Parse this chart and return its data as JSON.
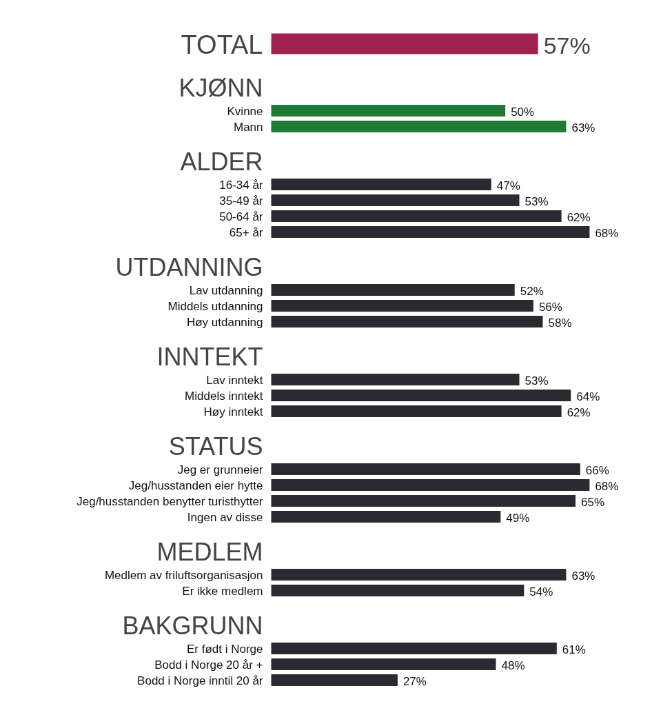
{
  "chart_data": [
    {
      "type": "bar",
      "orientation": "horizontal",
      "categories": [
        "TOTAL"
      ],
      "values": [
        57
      ],
      "value_labels": [
        "57%"
      ],
      "colors": [
        "#a0214f"
      ]
    },
    {
      "type": "bar",
      "orientation": "horizontal",
      "title": "KJØNN",
      "categories": [
        "Kvinne",
        "Mann"
      ],
      "values": [
        50,
        63
      ],
      "value_labels": [
        "50%",
        "63%"
      ],
      "colors": [
        "#1e7b34",
        "#1e7b34"
      ]
    },
    {
      "type": "bar",
      "orientation": "horizontal",
      "title": "ALDER",
      "categories": [
        "16-34 år",
        "35-49 år",
        "50-64 år",
        "65+ år"
      ],
      "values": [
        47,
        53,
        62,
        68
      ],
      "value_labels": [
        "47%",
        "53%",
        "62%",
        "68%"
      ],
      "colors": [
        "#2c2a30",
        "#2c2a30",
        "#2c2a30",
        "#2c2a30"
      ]
    },
    {
      "type": "bar",
      "orientation": "horizontal",
      "title": "UTDANNING",
      "categories": [
        "Lav utdanning",
        "Middels utdanning",
        "Høy utdanning"
      ],
      "values": [
        52,
        56,
        58
      ],
      "value_labels": [
        "52%",
        "56%",
        "58%"
      ],
      "colors": [
        "#2c2a30",
        "#2c2a30",
        "#2c2a30"
      ]
    },
    {
      "type": "bar",
      "orientation": "horizontal",
      "title": "INNTEKT",
      "categories": [
        "Lav inntekt",
        "Middels inntekt",
        "Høy inntekt"
      ],
      "values": [
        53,
        64,
        62
      ],
      "value_labels": [
        "53%",
        "64%",
        "62%"
      ],
      "colors": [
        "#2c2a30",
        "#2c2a30",
        "#2c2a30"
      ]
    },
    {
      "type": "bar",
      "orientation": "horizontal",
      "title": "STATUS",
      "categories": [
        "Jeg er grunneier",
        "Jeg/husstanden eier hytte",
        "Jeg/husstanden benytter turisthytter",
        "Ingen av disse"
      ],
      "values": [
        66,
        68,
        65,
        49
      ],
      "value_labels": [
        "66%",
        "68%",
        "65%",
        "49%"
      ],
      "colors": [
        "#2c2a30",
        "#2c2a30",
        "#2c2a30",
        "#2c2a30"
      ]
    },
    {
      "type": "bar",
      "orientation": "horizontal",
      "title": "MEDLEM",
      "categories": [
        "Medlem av friluftsorganisasjon",
        "Er ikke medlem"
      ],
      "values": [
        63,
        54
      ],
      "value_labels": [
        "63%",
        "54%"
      ],
      "colors": [
        "#2c2a30",
        "#2c2a30"
      ]
    },
    {
      "type": "bar",
      "orientation": "horizontal",
      "title": "BAKGRUNN",
      "categories": [
        "Er født i Norge",
        "Bodd i Norge 20 år +",
        "Bodd i Norge inntil 20 år"
      ],
      "values": [
        61,
        48,
        27
      ],
      "value_labels": [
        "61%",
        "48%",
        "27%"
      ],
      "colors": [
        "#2c2a30",
        "#2c2a30",
        "#2c2a30"
      ]
    }
  ]
}
